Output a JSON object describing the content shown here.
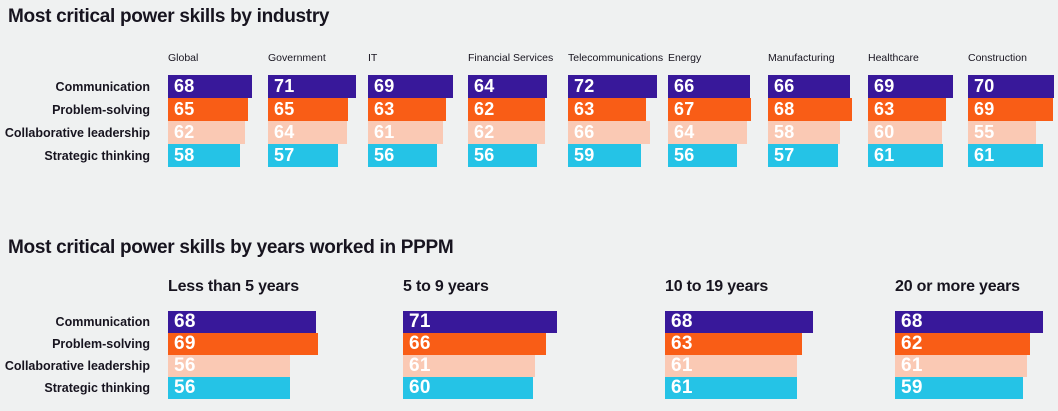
{
  "background_color": "#EFF1F1",
  "palette": {
    "communication": "#38189A",
    "problem_solving": "#F95D16",
    "collaborative_leadership": "#FAC9B4",
    "strategic_thinking": "#25C3E6",
    "text": "#17141F",
    "bar_value_label": "#FFFFFF"
  },
  "chart_data": [
    {
      "type": "bar",
      "orientation": "horizontal",
      "title": "Most critical power skills by industry",
      "categories": [
        "Communication",
        "Problem-solving",
        "Collaborative leadership",
        "Strategic thinking"
      ],
      "series_colors": [
        "#38189A",
        "#F95D16",
        "#FAC9B4",
        "#25C3E6"
      ],
      "value_labels": "inside-start",
      "axes": "none",
      "grid": false,
      "legend": "none",
      "groups": [
        {
          "label": "Global",
          "values": [
            68,
            65,
            62,
            58
          ]
        },
        {
          "label": "Government",
          "values": [
            71,
            65,
            64,
            57
          ]
        },
        {
          "label": "IT",
          "values": [
            69,
            63,
            61,
            56
          ]
        },
        {
          "label": "Financial Services",
          "values": [
            64,
            62,
            62,
            56
          ]
        },
        {
          "label": "Telecommunications",
          "values": [
            72,
            63,
            66,
            59
          ]
        },
        {
          "label": "Energy",
          "values": [
            66,
            67,
            64,
            56
          ]
        },
        {
          "label": "Manufacturing",
          "values": [
            66,
            68,
            58,
            57
          ]
        },
        {
          "label": "Healthcare",
          "values": [
            69,
            63,
            60,
            61
          ]
        },
        {
          "label": "Construction",
          "values": [
            70,
            69,
            55,
            61
          ]
        }
      ]
    },
    {
      "type": "bar",
      "orientation": "horizontal",
      "title": "Most critical power skills by years worked in PPPM",
      "categories": [
        "Communication",
        "Problem-solving",
        "Collaborative leadership",
        "Strategic thinking"
      ],
      "series_colors": [
        "#38189A",
        "#F95D16",
        "#FAC9B4",
        "#25C3E6"
      ],
      "value_labels": "inside-start",
      "axes": "none",
      "grid": false,
      "legend": "none",
      "groups": [
        {
          "label": "Less than 5 years",
          "values": [
            68,
            69,
            56,
            56
          ]
        },
        {
          "label": "5 to 9 years",
          "values": [
            71,
            66,
            61,
            60
          ]
        },
        {
          "label": "10 to 19 years",
          "values": [
            68,
            63,
            61,
            61
          ]
        },
        {
          "label": "20 or more years",
          "values": [
            68,
            62,
            61,
            59
          ]
        }
      ]
    }
  ]
}
